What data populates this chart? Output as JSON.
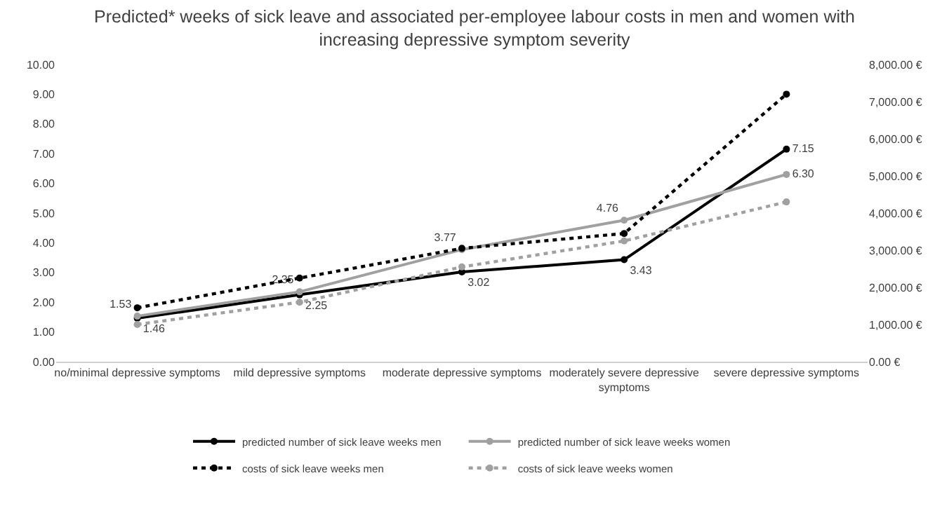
{
  "chart_data": {
    "type": "line",
    "title": "Predicted* weeks of sick leave and associated per-employee labour costs in men and women with increasing depressive symptom severity",
    "categories": [
      "no/minimal depressive symptoms",
      "mild depressive symptoms",
      "moderate depressive symptoms",
      "moderately severe depressive symptoms",
      "severe depressive symptoms"
    ],
    "series": [
      {
        "name": "predicted number of sick leave weeks men",
        "color": "#000000",
        "line_style": "solid",
        "values": [
          1.46,
          2.25,
          3.02,
          3.43,
          7.15
        ],
        "value_labels": [
          "1.46",
          "2.25",
          "3.02",
          "3.43",
          "7.15"
        ]
      },
      {
        "name": "predicted number of sick leave weeks women",
        "color": "#a0a0a0",
        "line_style": "solid",
        "values": [
          1.53,
          2.35,
          3.77,
          4.76,
          6.3
        ],
        "value_labels": [
          "1.53",
          "2.35",
          "3.77",
          "4.76",
          "6.30"
        ]
      },
      {
        "name": "costs of sick leave weeks men",
        "color": "#000000",
        "line_style": "dotted",
        "axis": "y2",
        "values": [
          1450,
          2250,
          3050,
          3450,
          7200
        ]
      },
      {
        "name": "costs of sick leave weeks women",
        "color": "#a0a0a0",
        "line_style": "dotted",
        "axis": "y2",
        "values": [
          1000,
          1600,
          2550,
          3250,
          4300
        ]
      }
    ],
    "ylim": [
      0,
      10
    ],
    "yticks": [
      {
        "value": 0,
        "label": "0.00"
      },
      {
        "value": 1,
        "label": "1.00"
      },
      {
        "value": 2,
        "label": "2.00"
      },
      {
        "value": 3,
        "label": "3.00"
      },
      {
        "value": 4,
        "label": "4.00"
      },
      {
        "value": 5,
        "label": "5.00"
      },
      {
        "value": 6,
        "label": "6.00"
      },
      {
        "value": 7,
        "label": "7.00"
      },
      {
        "value": 8,
        "label": "8.00"
      },
      {
        "value": 9,
        "label": "9.00"
      },
      {
        "value": 10,
        "label": "10.00"
      }
    ],
    "y2lim": [
      0,
      8000
    ],
    "y2ticks": [
      {
        "value": 0,
        "label": "0.00 €"
      },
      {
        "value": 1000,
        "label": "1,000.00 €"
      },
      {
        "value": 2000,
        "label": "2,000.00 €"
      },
      {
        "value": 3000,
        "label": "3,000.00 €"
      },
      {
        "value": 4000,
        "label": "4,000.00 €"
      },
      {
        "value": 5000,
        "label": "5,000.00 €"
      },
      {
        "value": 6000,
        "label": "6,000.00 €"
      },
      {
        "value": 7000,
        "label": "7,000.00 €"
      },
      {
        "value": 8000,
        "label": "8,000.00 €"
      }
    ],
    "legend": "bottom",
    "marker": "circle"
  }
}
